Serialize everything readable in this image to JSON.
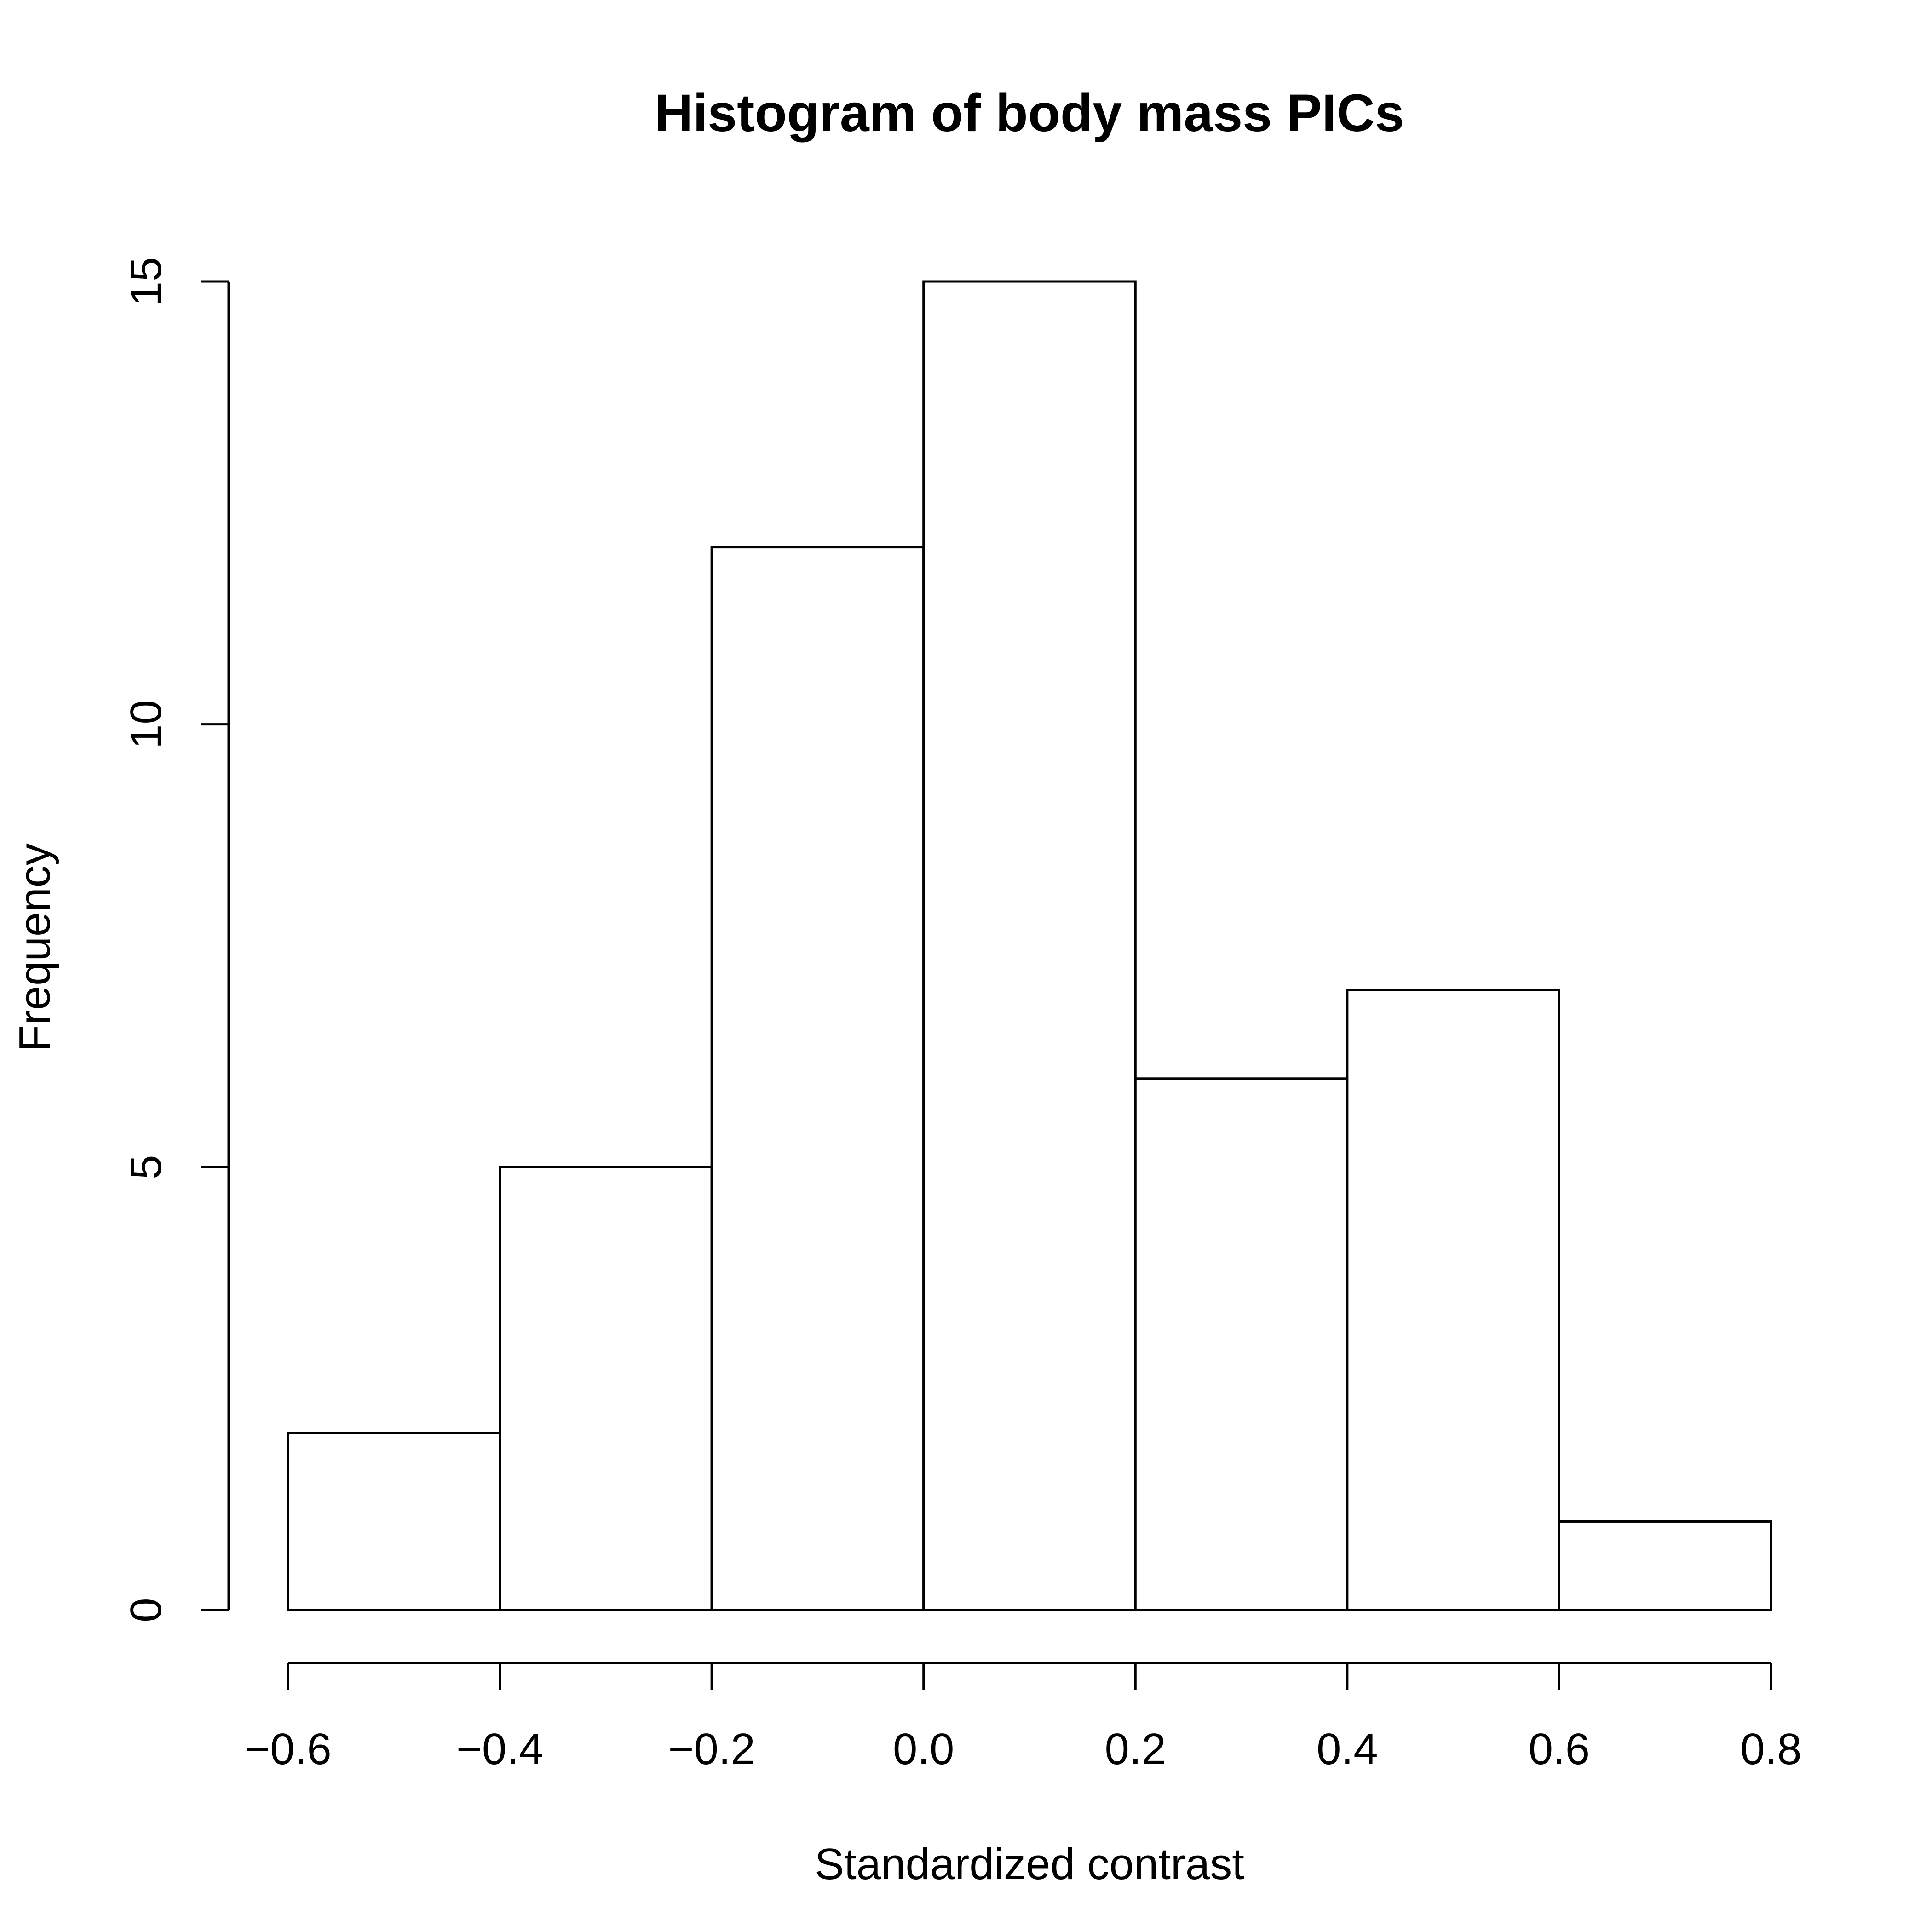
{
  "chart_data": {
    "type": "bar",
    "title": "Histogram of body mass PICs",
    "xlabel": "Standardized contrast",
    "ylabel": "Frequency",
    "bins": [
      {
        "from": -0.6,
        "to": -0.4,
        "count": 2
      },
      {
        "from": -0.4,
        "to": -0.2,
        "count": 5
      },
      {
        "from": -0.2,
        "to": 0.0,
        "count": 12
      },
      {
        "from": 0.0,
        "to": 0.2,
        "count": 15
      },
      {
        "from": 0.2,
        "to": 0.4,
        "count": 6
      },
      {
        "from": 0.4,
        "to": 0.6,
        "count": 7
      },
      {
        "from": 0.6,
        "to": 0.8,
        "count": 1
      }
    ],
    "xlim": [
      -0.6,
      0.8
    ],
    "ylim": [
      0,
      15
    ],
    "xticks": [
      -0.6,
      -0.4,
      -0.2,
      0.0,
      0.2,
      0.4,
      0.6,
      0.8
    ],
    "xtick_labels": [
      "−0.6",
      "−0.4",
      "−0.2",
      "0.0",
      "0.2",
      "0.4",
      "0.6",
      "0.8"
    ],
    "yticks": [
      0,
      5,
      10,
      15
    ],
    "ytick_labels": [
      "0",
      "5",
      "10",
      "15"
    ],
    "grid": false,
    "bar_fill": "#ffffff",
    "bar_stroke": "#000000"
  }
}
